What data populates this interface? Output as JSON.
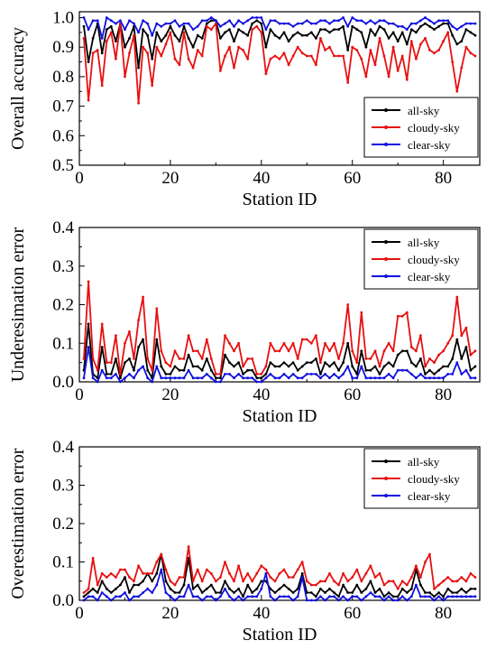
{
  "colors": {
    "all-sky": "#000000",
    "cloudy-sky": "#e81010",
    "clear-sky": "#1010e0"
  },
  "chart_data": [
    {
      "type": "line",
      "xlabel": "Station ID",
      "ylabel": "Overall accuracy",
      "xlim": [
        0,
        88
      ],
      "ylim": [
        0.5,
        1.02
      ],
      "xticks": [
        "0",
        "20",
        "40",
        "60",
        "80"
      ],
      "yticks": [
        "0.5",
        "0.6",
        "0.7",
        "0.8",
        "0.9",
        "1.0"
      ],
      "legend_position": "bottom-right",
      "x": [
        1,
        2,
        3,
        4,
        5,
        6,
        7,
        8,
        9,
        10,
        11,
        12,
        13,
        14,
        15,
        16,
        17,
        18,
        19,
        20,
        21,
        22,
        23,
        24,
        25,
        26,
        27,
        28,
        29,
        30,
        31,
        32,
        33,
        34,
        35,
        36,
        37,
        38,
        39,
        40,
        41,
        42,
        43,
        44,
        45,
        46,
        47,
        48,
        49,
        50,
        51,
        52,
        53,
        54,
        55,
        56,
        57,
        58,
        59,
        60,
        61,
        62,
        63,
        64,
        65,
        66,
        67,
        68,
        69,
        70,
        71,
        72,
        73,
        74,
        75,
        76,
        77,
        78,
        79,
        80,
        81,
        82,
        83,
        84,
        85,
        86,
        87
      ],
      "series": [
        {
          "name": "all-sky",
          "values": [
            0.97,
            0.85,
            0.93,
            0.98,
            0.88,
            0.96,
            0.97,
            0.92,
            0.98,
            0.9,
            0.93,
            0.97,
            0.83,
            0.96,
            0.94,
            0.86,
            0.95,
            0.92,
            0.94,
            0.97,
            0.94,
            0.92,
            0.97,
            0.93,
            0.9,
            0.94,
            0.93,
            0.98,
            0.99,
            0.99,
            0.93,
            0.95,
            0.96,
            0.92,
            0.96,
            0.95,
            0.94,
            0.98,
            0.99,
            0.98,
            0.9,
            0.96,
            0.94,
            0.93,
            0.95,
            0.92,
            0.94,
            0.95,
            0.94,
            0.94,
            0.95,
            0.93,
            0.96,
            0.96,
            0.95,
            0.96,
            0.96,
            0.97,
            0.89,
            0.97,
            0.96,
            0.95,
            0.9,
            0.96,
            0.94,
            0.97,
            0.96,
            0.93,
            0.95,
            0.92,
            0.95,
            0.91,
            0.96,
            0.95,
            0.97,
            0.98,
            0.97,
            0.96,
            0.97,
            0.98,
            0.98,
            0.94,
            0.91,
            0.92,
            0.96,
            0.95,
            0.94
          ]
        },
        {
          "name": "cloudy-sky",
          "values": [
            0.93,
            0.72,
            0.88,
            0.89,
            0.77,
            0.92,
            0.95,
            0.86,
            0.98,
            0.8,
            0.88,
            0.94,
            0.71,
            0.9,
            0.88,
            0.77,
            0.9,
            0.87,
            0.91,
            0.95,
            0.86,
            0.84,
            0.95,
            0.86,
            0.83,
            0.89,
            0.87,
            0.97,
            0.96,
            0.98,
            0.82,
            0.87,
            0.9,
            0.83,
            0.9,
            0.89,
            0.86,
            0.96,
            0.97,
            0.95,
            0.81,
            0.86,
            0.87,
            0.86,
            0.88,
            0.84,
            0.87,
            0.9,
            0.88,
            0.87,
            0.87,
            0.84,
            0.93,
            0.89,
            0.9,
            0.87,
            0.87,
            0.87,
            0.78,
            0.9,
            0.89,
            0.86,
            0.8,
            0.89,
            0.84,
            0.93,
            0.87,
            0.8,
            0.9,
            0.82,
            0.87,
            0.79,
            0.92,
            0.86,
            0.91,
            0.93,
            0.89,
            0.88,
            0.89,
            0.92,
            0.95,
            0.85,
            0.75,
            0.83,
            0.9,
            0.88,
            0.87
          ]
        },
        {
          "name": "clear-sky",
          "values": [
            1.0,
            0.96,
            0.99,
            0.99,
            0.93,
            1.0,
            0.99,
            0.98,
            0.99,
            0.96,
            0.99,
            0.98,
            0.95,
            0.99,
            0.98,
            0.94,
            0.98,
            0.97,
            0.98,
            0.98,
            0.99,
            0.97,
            0.98,
            0.98,
            0.96,
            0.97,
            0.99,
            0.99,
            1.0,
            0.99,
            0.97,
            0.98,
            0.99,
            0.97,
            0.99,
            0.98,
            0.99,
            1.0,
            1.0,
            1.0,
            0.96,
            0.99,
            0.99,
            0.98,
            0.98,
            0.98,
            0.97,
            0.98,
            0.98,
            0.99,
            0.98,
            0.98,
            0.99,
            0.99,
            0.98,
            0.99,
            0.99,
            1.0,
            0.97,
            1.0,
            0.99,
            0.99,
            0.98,
            0.99,
            0.98,
            0.99,
            0.99,
            0.98,
            0.98,
            0.97,
            0.97,
            0.96,
            0.98,
            0.98,
            0.99,
            1.0,
            0.99,
            0.98,
            0.99,
            0.99,
            0.99,
            0.97,
            0.96,
            0.97,
            0.98,
            0.98,
            0.98
          ]
        }
      ]
    },
    {
      "type": "line",
      "xlabel": "Station ID",
      "ylabel": "Underesimation error",
      "xlim": [
        0,
        88
      ],
      "ylim": [
        0,
        0.4
      ],
      "xticks": [
        "0",
        "20",
        "40",
        "60",
        "80"
      ],
      "yticks": [
        "0.0",
        "0.1",
        "0.2",
        "0.3",
        "0.4"
      ],
      "legend_position": "top-right",
      "x": [
        1,
        2,
        3,
        4,
        5,
        6,
        7,
        8,
        9,
        10,
        11,
        12,
        13,
        14,
        15,
        16,
        17,
        18,
        19,
        20,
        21,
        22,
        23,
        24,
        25,
        26,
        27,
        28,
        29,
        30,
        31,
        32,
        33,
        34,
        35,
        36,
        37,
        38,
        39,
        40,
        41,
        42,
        43,
        44,
        45,
        46,
        47,
        48,
        49,
        50,
        51,
        52,
        53,
        54,
        55,
        56,
        57,
        58,
        59,
        60,
        61,
        62,
        63,
        64,
        65,
        66,
        67,
        68,
        69,
        70,
        71,
        72,
        73,
        74,
        75,
        76,
        77,
        78,
        79,
        80,
        81,
        82,
        83,
        84,
        85,
        86,
        87
      ],
      "series": [
        {
          "name": "all-sky",
          "values": [
            0.03,
            0.15,
            0.02,
            0.01,
            0.09,
            0.02,
            0.02,
            0.06,
            0.01,
            0.05,
            0.06,
            0.03,
            0.09,
            0.11,
            0.03,
            0.01,
            0.11,
            0.04,
            0.02,
            0.02,
            0.04,
            0.03,
            0.03,
            0.07,
            0.04,
            0.04,
            0.03,
            0.06,
            0.03,
            0.01,
            0.01,
            0.07,
            0.05,
            0.04,
            0.05,
            0.02,
            0.03,
            0.03,
            0.01,
            0.01,
            0.02,
            0.05,
            0.04,
            0.04,
            0.05,
            0.04,
            0.05,
            0.03,
            0.04,
            0.05,
            0.05,
            0.06,
            0.02,
            0.05,
            0.04,
            0.05,
            0.03,
            0.05,
            0.1,
            0.04,
            0.02,
            0.08,
            0.03,
            0.03,
            0.04,
            0.02,
            0.04,
            0.05,
            0.04,
            0.07,
            0.08,
            0.08,
            0.05,
            0.04,
            0.06,
            0.02,
            0.03,
            0.02,
            0.03,
            0.04,
            0.04,
            0.06,
            0.11,
            0.06,
            0.09,
            0.03,
            0.04
          ]
        },
        {
          "name": "cloudy-sky",
          "values": [
            0.06,
            0.26,
            0.06,
            0.03,
            0.15,
            0.05,
            0.05,
            0.12,
            0.02,
            0.1,
            0.13,
            0.06,
            0.16,
            0.22,
            0.06,
            0.03,
            0.19,
            0.08,
            0.05,
            0.04,
            0.08,
            0.06,
            0.06,
            0.12,
            0.08,
            0.08,
            0.06,
            0.11,
            0.06,
            0.02,
            0.02,
            0.12,
            0.1,
            0.08,
            0.1,
            0.04,
            0.06,
            0.06,
            0.02,
            0.02,
            0.04,
            0.1,
            0.08,
            0.08,
            0.1,
            0.08,
            0.1,
            0.06,
            0.11,
            0.11,
            0.1,
            0.12,
            0.05,
            0.1,
            0.08,
            0.1,
            0.06,
            0.1,
            0.2,
            0.08,
            0.05,
            0.18,
            0.06,
            0.06,
            0.08,
            0.04,
            0.08,
            0.1,
            0.08,
            0.17,
            0.17,
            0.18,
            0.09,
            0.08,
            0.12,
            0.04,
            0.06,
            0.05,
            0.07,
            0.08,
            0.1,
            0.12,
            0.22,
            0.12,
            0.14,
            0.07,
            0.08
          ]
        },
        {
          "name": "clear-sky",
          "values": [
            0.01,
            0.09,
            0.01,
            0.0,
            0.03,
            0.01,
            0.01,
            0.02,
            0.0,
            0.01,
            0.02,
            0.01,
            0.03,
            0.04,
            0.01,
            0.0,
            0.04,
            0.01,
            0.01,
            0.01,
            0.01,
            0.01,
            0.01,
            0.03,
            0.01,
            0.01,
            0.01,
            0.02,
            0.01,
            0.0,
            0.0,
            0.02,
            0.02,
            0.01,
            0.02,
            0.01,
            0.01,
            0.01,
            0.0,
            0.0,
            0.01,
            0.02,
            0.01,
            0.01,
            0.02,
            0.01,
            0.02,
            0.01,
            0.01,
            0.02,
            0.02,
            0.02,
            0.01,
            0.02,
            0.01,
            0.02,
            0.01,
            0.02,
            0.04,
            0.01,
            0.01,
            0.04,
            0.01,
            0.01,
            0.01,
            0.01,
            0.01,
            0.02,
            0.01,
            0.03,
            0.03,
            0.03,
            0.02,
            0.01,
            0.02,
            0.01,
            0.01,
            0.01,
            0.01,
            0.01,
            0.02,
            0.02,
            0.05,
            0.02,
            0.03,
            0.01,
            0.01
          ]
        }
      ]
    },
    {
      "type": "line",
      "xlabel": "Station ID",
      "ylabel": "Overestimation error",
      "xlim": [
        0,
        88
      ],
      "ylim": [
        0,
        0.4
      ],
      "xticks": [
        "0",
        "20",
        "40",
        "60",
        "80"
      ],
      "yticks": [
        "0.0",
        "0.1",
        "0.2",
        "0.3",
        "0.4"
      ],
      "legend_position": "top-right",
      "x": [
        1,
        2,
        3,
        4,
        5,
        6,
        7,
        8,
        9,
        10,
        11,
        12,
        13,
        14,
        15,
        16,
        17,
        18,
        19,
        20,
        21,
        22,
        23,
        24,
        25,
        26,
        27,
        28,
        29,
        30,
        31,
        32,
        33,
        34,
        35,
        36,
        37,
        38,
        39,
        40,
        41,
        42,
        43,
        44,
        45,
        46,
        47,
        48,
        49,
        50,
        51,
        52,
        53,
        54,
        55,
        56,
        57,
        58,
        59,
        60,
        61,
        62,
        63,
        64,
        65,
        66,
        67,
        68,
        69,
        70,
        71,
        72,
        73,
        74,
        75,
        76,
        77,
        78,
        79,
        80,
        81,
        82,
        83,
        84,
        85,
        86,
        87
      ],
      "series": [
        {
          "name": "all-sky",
          "values": [
            0.01,
            0.02,
            0.03,
            0.02,
            0.05,
            0.03,
            0.02,
            0.03,
            0.04,
            0.06,
            0.02,
            0.04,
            0.04,
            0.05,
            0.07,
            0.05,
            0.07,
            0.12,
            0.05,
            0.03,
            0.02,
            0.02,
            0.04,
            0.11,
            0.03,
            0.04,
            0.02,
            0.03,
            0.04,
            0.02,
            0.02,
            0.05,
            0.03,
            0.02,
            0.03,
            0.01,
            0.04,
            0.02,
            0.03,
            0.05,
            0.05,
            0.03,
            0.02,
            0.03,
            0.04,
            0.03,
            0.02,
            0.03,
            0.07,
            0.02,
            0.02,
            0.01,
            0.03,
            0.02,
            0.03,
            0.02,
            0.01,
            0.04,
            0.02,
            0.02,
            0.04,
            0.02,
            0.03,
            0.05,
            0.02,
            0.03,
            0.01,
            0.02,
            0.01,
            0.01,
            0.03,
            0.02,
            0.03,
            0.08,
            0.04,
            0.02,
            0.02,
            0.01,
            0.02,
            0.01,
            0.03,
            0.02,
            0.02,
            0.03,
            0.02,
            0.03,
            0.03
          ]
        },
        {
          "name": "cloudy-sky",
          "values": [
            0.02,
            0.03,
            0.11,
            0.04,
            0.07,
            0.06,
            0.07,
            0.06,
            0.08,
            0.08,
            0.06,
            0.05,
            0.09,
            0.07,
            0.07,
            0.07,
            0.1,
            0.12,
            0.08,
            0.05,
            0.04,
            0.06,
            0.06,
            0.14,
            0.05,
            0.08,
            0.05,
            0.08,
            0.07,
            0.05,
            0.06,
            0.1,
            0.07,
            0.05,
            0.09,
            0.05,
            0.07,
            0.05,
            0.07,
            0.09,
            0.08,
            0.06,
            0.05,
            0.07,
            0.08,
            0.06,
            0.06,
            0.08,
            0.1,
            0.05,
            0.04,
            0.04,
            0.05,
            0.05,
            0.07,
            0.05,
            0.04,
            0.07,
            0.05,
            0.06,
            0.08,
            0.05,
            0.07,
            0.09,
            0.06,
            0.07,
            0.04,
            0.05,
            0.05,
            0.03,
            0.05,
            0.04,
            0.06,
            0.09,
            0.06,
            0.1,
            0.12,
            0.03,
            0.04,
            0.05,
            0.06,
            0.05,
            0.05,
            0.06,
            0.05,
            0.07,
            0.06
          ]
        },
        {
          "name": "clear-sky",
          "values": [
            0.0,
            0.01,
            0.01,
            0.0,
            0.02,
            0.01,
            0.0,
            0.01,
            0.01,
            0.02,
            0.0,
            0.01,
            0.01,
            0.02,
            0.03,
            0.02,
            0.04,
            0.08,
            0.02,
            0.01,
            0.0,
            0.01,
            0.01,
            0.04,
            0.01,
            0.01,
            0.0,
            0.01,
            0.01,
            0.0,
            0.01,
            0.03,
            0.01,
            0.0,
            0.01,
            0.0,
            0.01,
            0.01,
            0.01,
            0.03,
            0.07,
            0.01,
            0.0,
            0.01,
            0.01,
            0.01,
            0.0,
            0.01,
            0.06,
            0.0,
            0.0,
            0.0,
            0.01,
            0.0,
            0.01,
            0.01,
            0.0,
            0.01,
            0.0,
            0.01,
            0.01,
            0.0,
            0.01,
            0.02,
            0.01,
            0.01,
            0.0,
            0.01,
            0.0,
            0.0,
            0.01,
            0.0,
            0.01,
            0.04,
            0.01,
            0.01,
            0.01,
            0.0,
            0.01,
            0.0,
            0.01,
            0.01,
            0.01,
            0.01,
            0.01,
            0.01,
            0.01
          ]
        }
      ]
    }
  ]
}
